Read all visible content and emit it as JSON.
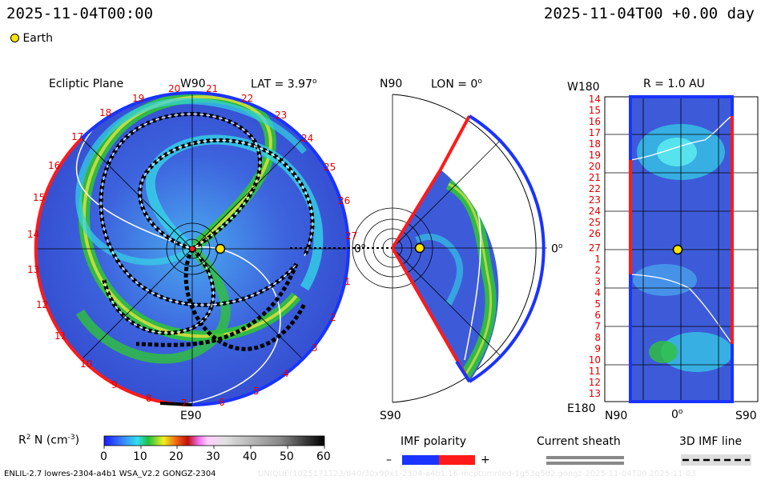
{
  "header": {
    "left_date": "2025-11-04T00:00",
    "right_date": "2025-11-04T00 +0.00 day"
  },
  "legend": {
    "earth_label": "Earth"
  },
  "ecliptic": {
    "title": "Ecliptic Plane",
    "top_label": "W90",
    "lat_label": "LAT = 3.97",
    "lat_sup": "o",
    "bottom_label": "E90",
    "right_label": "0",
    "right_sup": "o",
    "ticks": [
      "20",
      "21",
      "22",
      "23",
      "24",
      "25",
      "26",
      "27",
      "1",
      "2",
      "3",
      "4",
      "5",
      "6",
      "7",
      "8",
      "9",
      "10",
      "11",
      "12",
      "13",
      "14",
      "15",
      "16",
      "17",
      "18",
      "19"
    ]
  },
  "meridional": {
    "top_left": "N90",
    "lon_label": "LON = 0",
    "lon_sup": "o",
    "right_label": "0",
    "right_sup": "o",
    "bottom_label": "S90"
  },
  "radial": {
    "top_left": "W180",
    "r_label": "R = 1.0 AU",
    "bottom_left": "E180",
    "x_left": "N90",
    "x_mid": "0",
    "x_mid_sup": "o",
    "x_right": "S90",
    "ticks": [
      "14",
      "15",
      "16",
      "17",
      "18",
      "19",
      "20",
      "21",
      "22",
      "23",
      "24",
      "25",
      "26",
      "27",
      "1",
      "2",
      "3",
      "4",
      "5",
      "6",
      "7",
      "8",
      "9",
      "10",
      "11",
      "12",
      "13"
    ]
  },
  "colorbar": {
    "label": "R",
    "label_sup": "2",
    "label_rest": "N (cm",
    "label_unit_sup": "-3",
    "label_close": ")",
    "ticks": [
      "0",
      "10",
      "20",
      "30",
      "40",
      "50",
      "60"
    ]
  },
  "imf": {
    "title": "IMF polarity",
    "minus": "–",
    "plus": "+"
  },
  "sheath": {
    "title": "Current sheath"
  },
  "imfline": {
    "title": "3D IMF line"
  },
  "footer": {
    "left": "ENLIL-2.7 lowres-2304-a4b1 WSA_V2.2 GONGZ-2304",
    "watermark": "UNIQUE(1025171123/840/30x90x1-2304-a4b1.16-mcptumnled-1g53q5d2.gongz-2025-11-04T00    2025-11-03"
  },
  "colors": {
    "bg_blue": "#3b5bd9",
    "ring_red": "#ff1a1a",
    "ring_blue": "#1a33ff",
    "green": "#2fc33a",
    "yellow": "#e8e23a",
    "cyan": "#34d3e6",
    "earth": "#ffe600"
  }
}
